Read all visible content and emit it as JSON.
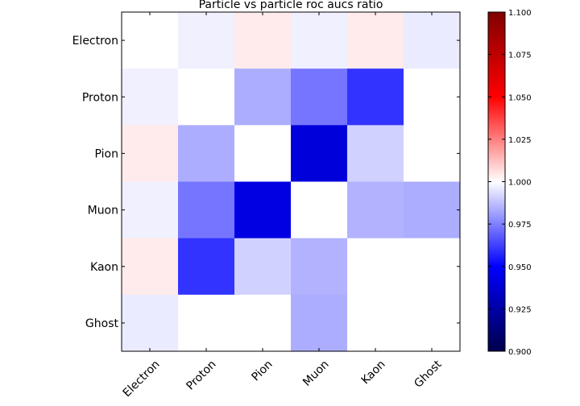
{
  "chart_data": {
    "type": "heatmap",
    "title": "Particle vs particle roc aucs ratio",
    "rows": [
      "Electron",
      "Proton",
      "Pion",
      "Muon",
      "Kaon",
      "Ghost"
    ],
    "columns": [
      "Electron",
      "Proton",
      "Pion",
      "Muon",
      "Kaon",
      "Ghost"
    ],
    "values": [
      [
        1.0,
        0.997,
        1.004,
        0.997,
        1.004,
        0.996
      ],
      [
        0.997,
        1.0,
        0.984,
        0.973,
        0.96,
        1.0
      ],
      [
        1.004,
        0.984,
        1.0,
        0.94,
        0.991,
        1.0
      ],
      [
        0.997,
        0.973,
        0.942,
        1.0,
        0.985,
        0.984
      ],
      [
        1.004,
        0.96,
        0.991,
        0.985,
        1.0,
        1.0
      ],
      [
        0.996,
        1.0,
        1.0,
        0.984,
        1.0,
        1.0
      ]
    ],
    "colorbar": {
      "min": 0.9,
      "max": 1.1,
      "ticks": [
        "0.900",
        "0.925",
        "0.950",
        "0.975",
        "1.000",
        "1.025",
        "1.050",
        "1.075",
        "1.100"
      ],
      "colormap": "seismic"
    },
    "grid": false,
    "xtick_rotation": 45
  }
}
